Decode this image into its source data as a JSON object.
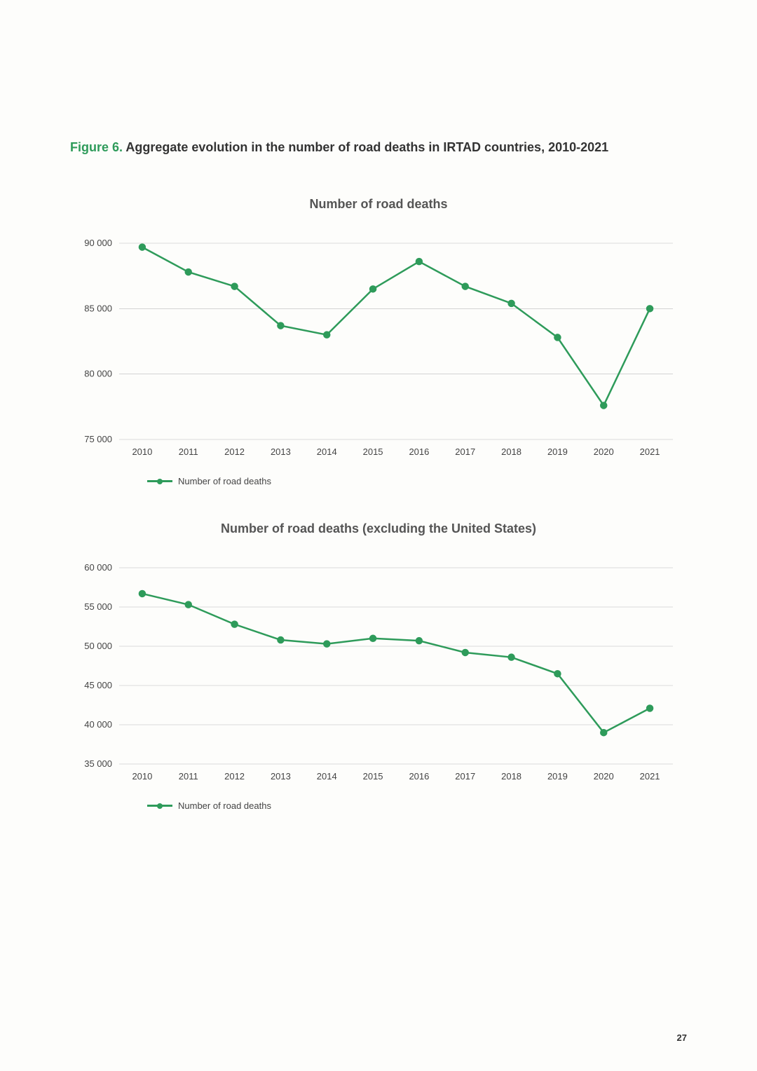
{
  "figure": {
    "label": "Figure 6.",
    "title": "Aggregate evolution in the number of road deaths in IRTAD countries, 2010-2021"
  },
  "page_number": "27",
  "colors": {
    "series": "#2e9b5a",
    "grid": "#bbbbbb",
    "text": "#444444",
    "title_accent": "#2e9b5a",
    "background": "#fdfdfb"
  },
  "chart1": {
    "type": "line",
    "title": "Number of road deaths",
    "legend_label": "Number of road deaths",
    "categories": [
      "2010",
      "2011",
      "2012",
      "2013",
      "2014",
      "2015",
      "2016",
      "2017",
      "2018",
      "2019",
      "2020",
      "2021"
    ],
    "values": [
      89700,
      87800,
      86700,
      83700,
      83000,
      86500,
      88600,
      86700,
      85400,
      82800,
      77600,
      85000
    ],
    "ylim": [
      75000,
      90000
    ],
    "ytick_step": 5000,
    "ytick_labels": [
      "75 000",
      "80 000",
      "85 000",
      "90 000"
    ],
    "line_color": "#2e9b5a",
    "marker_color": "#2e9b5a",
    "marker_radius": 4.5,
    "line_width": 2.5,
    "grid_color": "#bbbbbb",
    "background_color": "#fdfdfb",
    "axis_fontsize": 13,
    "title_fontsize": 18
  },
  "chart2": {
    "type": "line",
    "title": "Number of road deaths (excluding the United States)",
    "legend_label": "Number of road deaths",
    "categories": [
      "2010",
      "2011",
      "2012",
      "2013",
      "2014",
      "2015",
      "2016",
      "2017",
      "2018",
      "2019",
      "2020",
      "2021"
    ],
    "values": [
      56700,
      55300,
      52800,
      50800,
      50300,
      51000,
      50700,
      49200,
      48600,
      46500,
      39000,
      42100
    ],
    "ylim": [
      35000,
      60000
    ],
    "ytick_step": 5000,
    "ytick_labels": [
      "35 000",
      "40 000",
      "45 000",
      "50 000",
      "55 000",
      "60 000"
    ],
    "line_color": "#2e9b5a",
    "marker_color": "#2e9b5a",
    "marker_radius": 4.5,
    "line_width": 2.5,
    "grid_color": "#bbbbbb",
    "background_color": "#fdfdfb",
    "axis_fontsize": 13,
    "title_fontsize": 18
  }
}
